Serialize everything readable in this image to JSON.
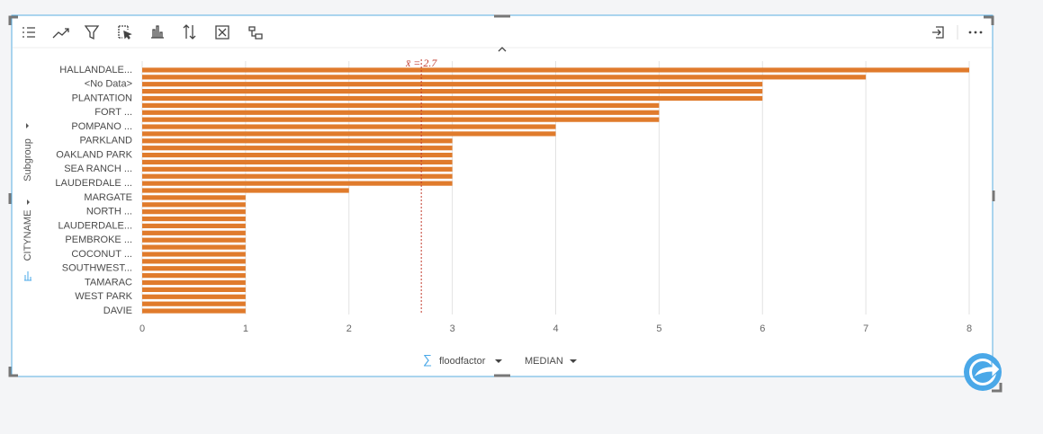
{
  "chart_data": {
    "type": "bar",
    "orientation": "horizontal",
    "categories": [
      "HALLANDALE...",
      null,
      "<No Data>",
      null,
      "PLANTATION",
      null,
      "FORT ...",
      null,
      "POMPANO ...",
      null,
      "PARKLAND",
      null,
      "OAKLAND PARK",
      null,
      "SEA RANCH ...",
      null,
      "LAUDERDALE ...",
      null,
      "MARGATE",
      null,
      "NORTH ...",
      null,
      "LAUDERDALE...",
      null,
      "PEMBROKE ...",
      null,
      "COCONUT ...",
      null,
      "SOUTHWEST...",
      null,
      "TAMARAC",
      null,
      "WEST PARK",
      null,
      "DAVIE"
    ],
    "values": [
      8,
      7,
      6,
      6,
      6,
      5,
      5,
      5,
      4,
      4,
      3,
      3,
      3,
      3,
      3,
      3,
      3,
      2,
      1,
      1,
      1,
      1,
      1,
      1,
      1,
      1,
      1,
      1,
      1,
      1,
      1,
      1,
      1,
      1,
      1
    ],
    "color": "#e07b2c",
    "xlim": [
      0,
      8
    ],
    "xticks": [
      0,
      1,
      2,
      3,
      4,
      5,
      6,
      7,
      8
    ],
    "grid": true,
    "mean": 2.7,
    "mean_label": "x̄ = 2.7",
    "y_axis_label": "CITYNAME",
    "subgroup_label": "Subgroup",
    "x_axis_label": "floodfactor",
    "aggregation": "MEDIAN"
  }
}
